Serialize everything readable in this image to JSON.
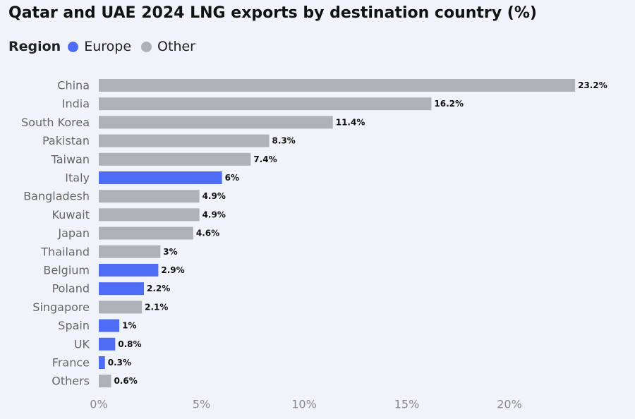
{
  "chart_data": {
    "type": "bar",
    "orientation": "horizontal",
    "title": "Qatar and UAE 2024 LNG exports by destination country (%)",
    "legend": {
      "title": "Region",
      "placement": "top-left",
      "entries": [
        {
          "name": "Europe",
          "color": "#4f6cf6"
        },
        {
          "name": "Other",
          "color": "#adb1b8"
        }
      ]
    },
    "categories": [
      "China",
      "India",
      "South Korea",
      "Pakistan",
      "Taiwan",
      "Italy",
      "Bangladesh",
      "Kuwait",
      "Japan",
      "Thailand",
      "Belgium",
      "Poland",
      "Singapore",
      "Spain",
      "UK",
      "France",
      "Others"
    ],
    "values": [
      23.2,
      16.2,
      11.4,
      8.3,
      7.4,
      6,
      4.9,
      4.9,
      4.6,
      3,
      2.9,
      2.2,
      2.1,
      1,
      0.8,
      0.3,
      0.6
    ],
    "value_labels": [
      "23.2%",
      "16.2%",
      "11.4%",
      "8.3%",
      "7.4%",
      "6%",
      "4.9%",
      "4.9%",
      "4.6%",
      "3%",
      "2.9%",
      "2.2%",
      "2.1%",
      "1%",
      "0.8%",
      "0.3%",
      "0.6%"
    ],
    "region": [
      "Other",
      "Other",
      "Other",
      "Other",
      "Other",
      "Europe",
      "Other",
      "Other",
      "Other",
      "Other",
      "Europe",
      "Europe",
      "Other",
      "Europe",
      "Europe",
      "Europe",
      "Other"
    ],
    "xticks": [
      0,
      5,
      10,
      15,
      20
    ],
    "xtick_labels": [
      "0%",
      "5%",
      "10%",
      "15%",
      "20%"
    ],
    "xlim": [
      0,
      25
    ],
    "grid": false
  }
}
